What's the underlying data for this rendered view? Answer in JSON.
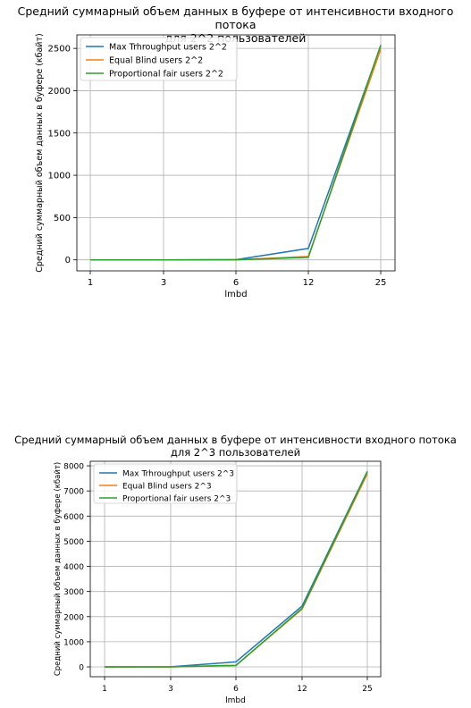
{
  "colors": {
    "max_throughput": "#1f77b4",
    "equal_blind": "#ff7f0e",
    "proportional_fair": "#2ca02c",
    "grid": "#b0b0b0"
  },
  "chart_data": [
    {
      "type": "line",
      "title_line1": "Средний суммарный объем данных в буфере от интенсивности входного потока",
      "title_line2": "для 2^2 пользователей",
      "xlabel": "lmbd",
      "ylabel": "Средний суммарный объем данных в буфере (кбайт)",
      "categories": [
        "1",
        "3",
        "6",
        "12",
        "25"
      ],
      "yticks": [
        0,
        500,
        1000,
        1500,
        2000,
        2500
      ],
      "ylim": [
        -130,
        2660
      ],
      "grid": true,
      "legend_position": "top-left",
      "series": [
        {
          "name": "Max Trhroughput users 2^2",
          "color_key": "max_throughput",
          "values": [
            0,
            0,
            2,
            135,
            2530
          ]
        },
        {
          "name": "Equal Blind users 2^2",
          "color_key": "equal_blind",
          "values": [
            0,
            0,
            1,
            40,
            2490
          ]
        },
        {
          "name": "Proportional fair users 2^2",
          "color_key": "proportional_fair",
          "values": [
            0,
            0,
            1,
            30,
            2540
          ]
        }
      ]
    },
    {
      "type": "line",
      "title_line1": "Средний суммарный объем данных в буфере от интенсивности входного потока",
      "title_line2": "для 2^3 пользователей",
      "xlabel": "lmbd",
      "ylabel": "Средний суммарный объем данных в буфере (кбайт)",
      "categories": [
        "1",
        "3",
        "6",
        "12",
        "25"
      ],
      "yticks": [
        0,
        1000,
        2000,
        3000,
        4000,
        5000,
        6000,
        7000,
        8000
      ],
      "ylim": [
        -390,
        8180
      ],
      "grid": true,
      "legend_position": "top-left",
      "series": [
        {
          "name": "Max Trhroughput users 2^3",
          "color_key": "max_throughput",
          "values": [
            0,
            5,
            200,
            2420,
            7780
          ]
        },
        {
          "name": "Equal Blind users 2^3",
          "color_key": "equal_blind",
          "values": [
            0,
            0,
            60,
            2300,
            7680
          ]
        },
        {
          "name": "Proportional fair users 2^3",
          "color_key": "proportional_fair",
          "values": [
            0,
            0,
            60,
            2330,
            7760
          ]
        }
      ]
    }
  ]
}
